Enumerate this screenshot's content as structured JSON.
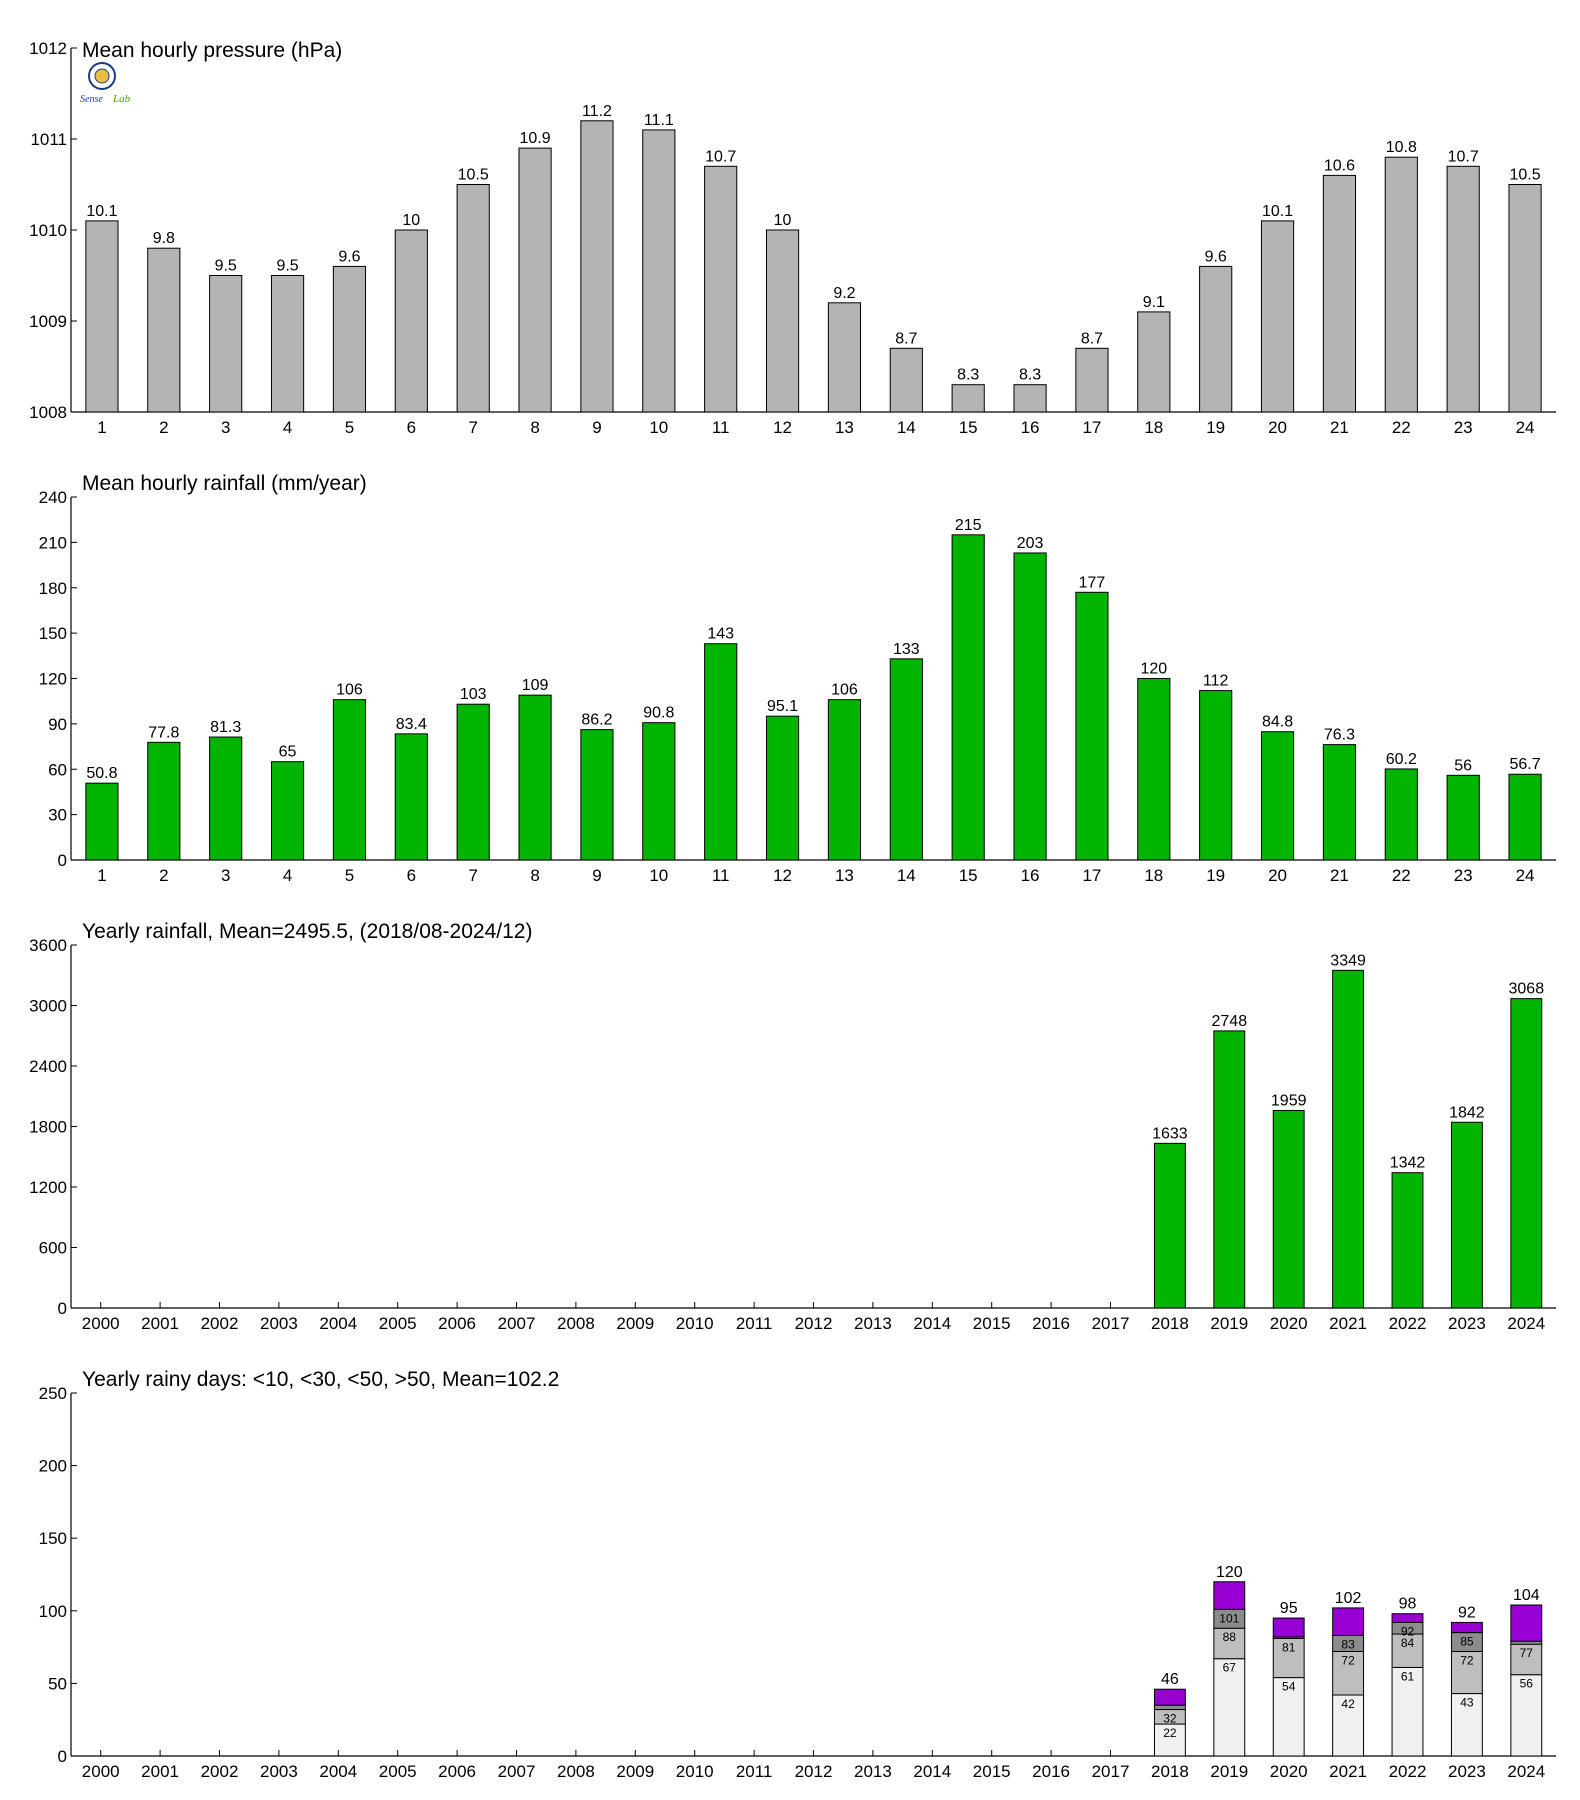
{
  "colors": {
    "pressure_bar": "#b4b4b4",
    "rain_bar": "#00b400",
    "axis": "#000000",
    "days_lt10": "#f0f0f0",
    "days_lt30": "#bebebe",
    "days_lt50": "#8c8c8c",
    "days_gt50": "#9600d2"
  },
  "chart_data": [
    {
      "type": "bar",
      "title": "Mean hourly pressure (hPa)",
      "categories": [
        "1",
        "2",
        "3",
        "4",
        "5",
        "6",
        "7",
        "8",
        "9",
        "10",
        "11",
        "12",
        "13",
        "14",
        "15",
        "16",
        "17",
        "18",
        "19",
        "20",
        "21",
        "22",
        "23",
        "24"
      ],
      "values": [
        1010.1,
        1009.8,
        1009.5,
        1009.5,
        1009.6,
        1010,
        1010.5,
        1010.9,
        1011.2,
        1011.1,
        1010.7,
        1010,
        1009.2,
        1008.7,
        1008.3,
        1008.3,
        1008.7,
        1009.1,
        1009.6,
        1010.1,
        1010.6,
        1010.8,
        1010.7,
        1010.5
      ],
      "labels": [
        "10.1",
        "9.8",
        "9.5",
        "9.5",
        "9.6",
        "10",
        "10.5",
        "10.9",
        "11.2",
        "11.1",
        "10.7",
        "10",
        "9.2",
        "8.7",
        "8.3",
        "8.3",
        "8.7",
        "9.1",
        "9.6",
        "10.1",
        "10.6",
        "10.8",
        "10.7",
        "10.5"
      ],
      "ylim": [
        1008,
        1012
      ],
      "yticks": [
        "1008",
        "1009",
        "1010",
        "1011",
        "1012"
      ],
      "bar_color": "#b4b4b4"
    },
    {
      "type": "bar",
      "title": "Mean hourly rainfall (mm/year)",
      "categories": [
        "1",
        "2",
        "3",
        "4",
        "5",
        "6",
        "7",
        "8",
        "9",
        "10",
        "11",
        "12",
        "13",
        "14",
        "15",
        "16",
        "17",
        "18",
        "19",
        "20",
        "21",
        "22",
        "23",
        "24"
      ],
      "values": [
        50.8,
        77.8,
        81.3,
        65,
        106,
        83.4,
        103,
        109,
        86.2,
        90.8,
        143,
        95.1,
        106,
        133,
        215,
        203,
        177,
        120,
        112,
        84.8,
        76.3,
        60.2,
        56,
        56.7
      ],
      "labels": [
        "50.8",
        "77.8",
        "81.3",
        "65",
        "106",
        "83.4",
        "103",
        "109",
        "86.2",
        "90.8",
        "143",
        "95.1",
        "106",
        "133",
        "215",
        "203",
        "177",
        "120",
        "112",
        "84.8",
        "76.3",
        "60.2",
        "56",
        "56.7"
      ],
      "ylim": [
        0,
        240
      ],
      "yticks": [
        "0",
        "30",
        "60",
        "90",
        "120",
        "150",
        "180",
        "210",
        "240"
      ],
      "bar_color": "#00b400"
    },
    {
      "type": "bar",
      "title": "Yearly rainfall, Mean=2495.5, (2018/08-2024/12)",
      "categories": [
        "2000",
        "2001",
        "2002",
        "2003",
        "2004",
        "2005",
        "2006",
        "2007",
        "2008",
        "2009",
        "2010",
        "2011",
        "2012",
        "2013",
        "2014",
        "2015",
        "2016",
        "2017",
        "2018",
        "2019",
        "2020",
        "2021",
        "2022",
        "2023",
        "2024"
      ],
      "values": [
        null,
        null,
        null,
        null,
        null,
        null,
        null,
        null,
        null,
        null,
        null,
        null,
        null,
        null,
        null,
        null,
        null,
        null,
        1633,
        2748,
        1959,
        3349,
        1342,
        1842,
        3068
      ],
      "labels": [
        "",
        "",
        "",
        "",
        "",
        "",
        "",
        "",
        "",
        "",
        "",
        "",
        "",
        "",
        "",
        "",
        "",
        "",
        "1633",
        "2748",
        "1959",
        "3349",
        "1342",
        "1842",
        "3068"
      ],
      "ylim": [
        0,
        3600
      ],
      "yticks": [
        "0",
        "600",
        "1200",
        "1800",
        "2400",
        "3000",
        "3600"
      ],
      "bar_color": "#00b400"
    },
    {
      "type": "bar",
      "stacked": true,
      "title": "Yearly rainy days: <10, <30, <50, >50, Mean=102.2",
      "categories": [
        "2000",
        "2001",
        "2002",
        "2003",
        "2004",
        "2005",
        "2006",
        "2007",
        "2008",
        "2009",
        "2010",
        "2011",
        "2012",
        "2013",
        "2014",
        "2015",
        "2016",
        "2017",
        "2018",
        "2019",
        "2020",
        "2021",
        "2022",
        "2023",
        "2024"
      ],
      "ylim": [
        0,
        250
      ],
      "yticks": [
        "0",
        "50",
        "100",
        "150",
        "200",
        "250"
      ],
      "cumulative": {
        "lt10": [
          null,
          null,
          null,
          null,
          null,
          null,
          null,
          null,
          null,
          null,
          null,
          null,
          null,
          null,
          null,
          null,
          null,
          null,
          22,
          67,
          54,
          42,
          61,
          43,
          56
        ],
        "lt30": [
          null,
          null,
          null,
          null,
          null,
          null,
          null,
          null,
          null,
          null,
          null,
          null,
          null,
          null,
          null,
          null,
          null,
          null,
          32,
          88,
          81,
          72,
          84,
          72,
          77
        ],
        "lt50": [
          null,
          null,
          null,
          null,
          null,
          null,
          null,
          null,
          null,
          null,
          null,
          null,
          null,
          null,
          null,
          null,
          null,
          null,
          35,
          101,
          82,
          83,
          92,
          85,
          79
        ],
        "total": [
          null,
          null,
          null,
          null,
          null,
          null,
          null,
          null,
          null,
          null,
          null,
          null,
          null,
          null,
          null,
          null,
          null,
          null,
          46,
          120,
          95,
          102,
          98,
          92,
          104
        ]
      },
      "segment_labels": {
        "lt10": [
          "",
          "",
          "",
          "",
          "",
          "",
          "",
          "",
          "",
          "",
          "",
          "",
          "",
          "",
          "",
          "",
          "",
          "",
          "22",
          "67",
          "54",
          "42",
          "61",
          "43",
          "56"
        ],
        "lt30": [
          "",
          "",
          "",
          "",
          "",
          "",
          "",
          "",
          "",
          "",
          "",
          "",
          "",
          "",
          "",
          "",
          "",
          "",
          "32",
          "88",
          "81",
          "72",
          "84",
          "72",
          "77"
        ],
        "lt50": [
          "",
          "",
          "",
          "",
          "",
          "",
          "",
          "",
          "",
          "",
          "",
          "",
          "",
          "",
          "",
          "",
          "",
          "",
          "",
          "101",
          "",
          "83",
          "92",
          "85",
          ""
        ],
        "total": [
          "",
          "",
          "",
          "",
          "",
          "",
          "",
          "",
          "",
          "",
          "",
          "",
          "",
          "",
          "",
          "",
          "",
          "",
          "46",
          "120",
          "95",
          "102",
          "98",
          "92",
          "104"
        ]
      }
    }
  ]
}
